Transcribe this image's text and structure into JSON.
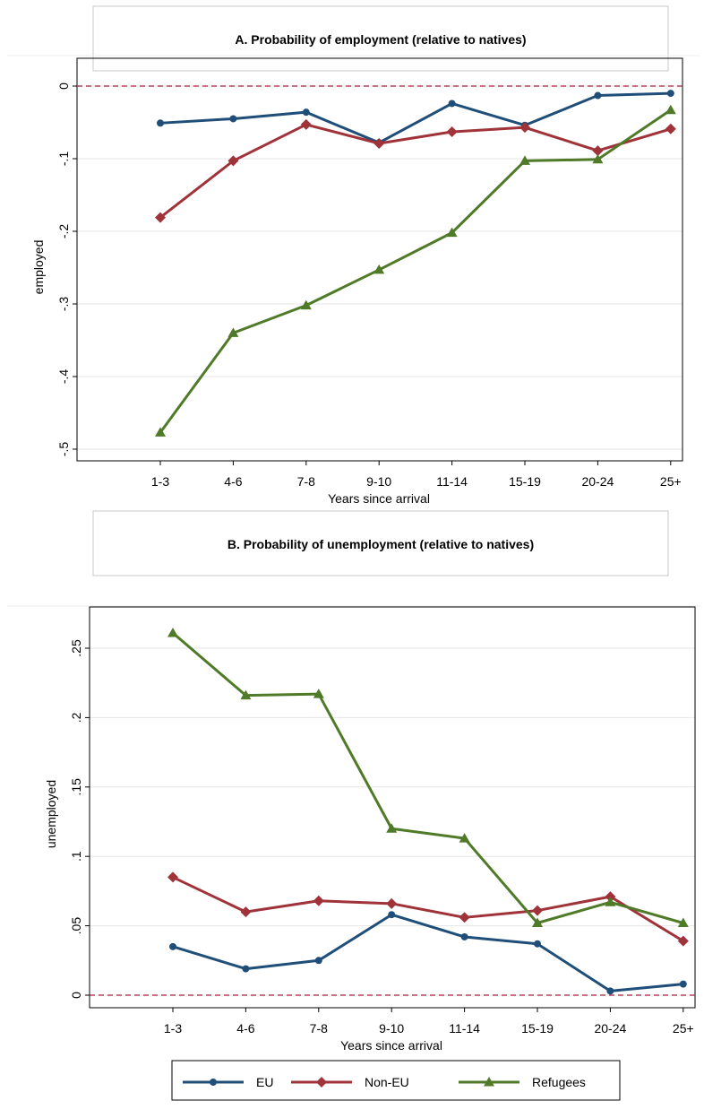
{
  "colors": {
    "eu": "#1f4e79",
    "non_eu": "#a0333a",
    "refugees": "#4f7a28",
    "reference_line": "#a0203c"
  },
  "legend": {
    "position": "bottom-center",
    "entries": [
      {
        "key": "eu",
        "label": "EU",
        "marker": "circle"
      },
      {
        "key": "non_eu",
        "label": "Non-EU",
        "marker": "diamond"
      },
      {
        "key": "refugees",
        "label": "Refugees",
        "marker": "triangle"
      }
    ]
  },
  "chart_data": [
    {
      "type": "line",
      "title": "A. Probability of  employment (relative to natives)",
      "xlabel": "Years since arrival",
      "ylabel": "employed",
      "categories": [
        "1-3",
        "4-6",
        "7-8",
        "9-10",
        "11-14",
        "15-19",
        "20-24",
        "25+"
      ],
      "ylim": [
        -0.5,
        0
      ],
      "yticks": [
        0,
        -0.1,
        -0.2,
        -0.3,
        -0.4,
        -0.5
      ],
      "ytick_labels": [
        "0",
        "-.1",
        "-.2",
        "-.3",
        "-.4",
        "-.5"
      ],
      "grid": true,
      "reference_line": 0,
      "series": [
        {
          "key": "eu",
          "name": "EU",
          "values": [
            -0.051,
            -0.045,
            -0.036,
            -0.078,
            -0.024,
            -0.054,
            -0.013,
            -0.01
          ]
        },
        {
          "key": "non_eu",
          "name": "Non-EU",
          "values": [
            -0.181,
            -0.103,
            -0.053,
            -0.079,
            -0.063,
            -0.057,
            -0.089,
            -0.059
          ]
        },
        {
          "key": "refugees",
          "name": "Refugees",
          "values": [
            -0.477,
            -0.34,
            -0.302,
            -0.253,
            -0.202,
            -0.103,
            -0.101,
            -0.033
          ]
        }
      ]
    },
    {
      "type": "line",
      "title": "B. Probability of  unemployment (relative to natives)",
      "xlabel": "Years since arrival",
      "ylabel": "unemployed",
      "categories": [
        "1-3",
        "4-6",
        "7-8",
        "9-10",
        "11-14",
        "15-19",
        "20-24",
        "25+"
      ],
      "ylim": [
        0,
        0.25
      ],
      "yticks": [
        0,
        0.05,
        0.1,
        0.15,
        0.2,
        0.25
      ],
      "ytick_labels": [
        "0",
        ".05",
        ".1",
        ".15",
        ".2",
        ".25"
      ],
      "grid": true,
      "reference_line": 0,
      "series": [
        {
          "key": "eu",
          "name": "EU",
          "values": [
            0.035,
            0.019,
            0.025,
            0.058,
            0.042,
            0.037,
            0.003,
            0.008
          ]
        },
        {
          "key": "non_eu",
          "name": "Non-EU",
          "values": [
            0.085,
            0.06,
            0.068,
            0.066,
            0.056,
            0.061,
            0.071,
            0.039
          ]
        },
        {
          "key": "refugees",
          "name": "Refugees",
          "values": [
            0.261,
            0.216,
            0.217,
            0.12,
            0.113,
            0.052,
            0.067,
            0.052
          ]
        }
      ]
    }
  ]
}
